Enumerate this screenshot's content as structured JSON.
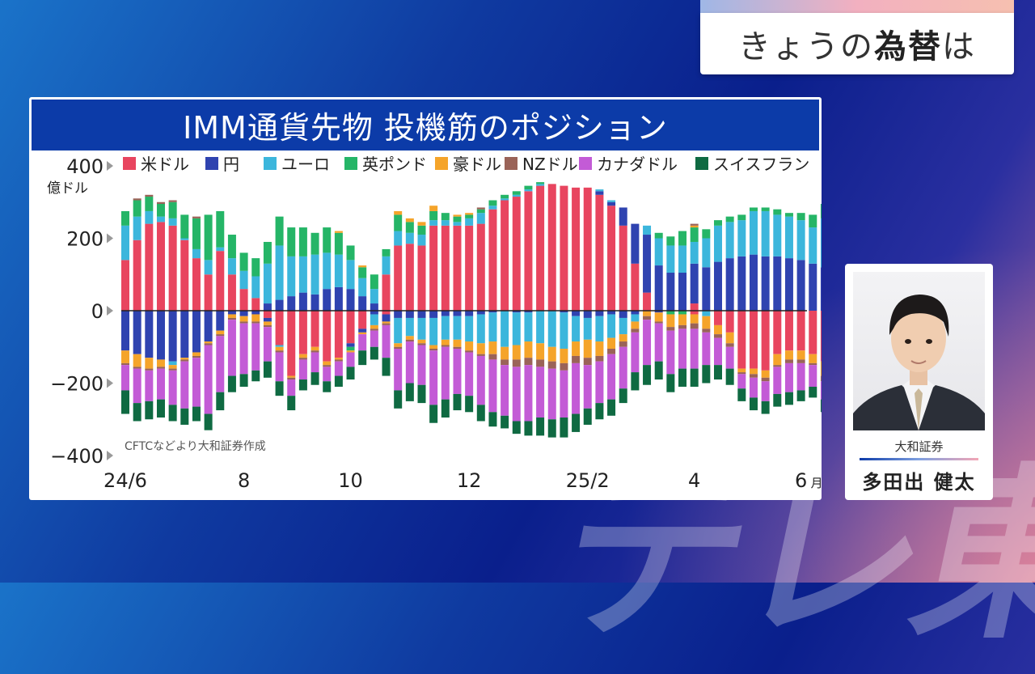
{
  "header": {
    "title_plain": "きょうの",
    "title_bold": "為替",
    "title_tail": "は"
  },
  "chart_data": {
    "type": "bar",
    "stacked": true,
    "title": "IMM通貨先物 投機筋のポジション",
    "ylabel": "億ドル",
    "source": "CFTCなどより大和証券作成",
    "ylim": [
      -400,
      400
    ],
    "yticks": [
      {
        "v": 400,
        "label": "400"
      },
      {
        "v": 200,
        "label": "200"
      },
      {
        "v": 0,
        "label": "0"
      },
      {
        "v": -200,
        "label": "−200"
      },
      {
        "v": -400,
        "label": "−400"
      }
    ],
    "xticks": [
      {
        "i": 0,
        "label": "24/6"
      },
      {
        "i": 10,
        "label": "8"
      },
      {
        "i": 19,
        "label": "10"
      },
      {
        "i": 29,
        "label": "12"
      },
      {
        "i": 39,
        "label": "25/2"
      },
      {
        "i": 48,
        "label": "4"
      },
      {
        "i": 57,
        "label": "6"
      }
    ],
    "x_unit": "月",
    "legend_position": "top",
    "series": [
      {
        "name": "米ドル",
        "color": "#e8455f"
      },
      {
        "name": "円",
        "color": "#2f43b0"
      },
      {
        "name": "ユーロ",
        "color": "#3cb6dc"
      },
      {
        "name": "英ポンド",
        "color": "#25b567"
      },
      {
        "name": "豪ドル",
        "color": "#f5a42a"
      },
      {
        "name": "NZドル",
        "color": "#9a6358"
      },
      {
        "name": "カナダドル",
        "color": "#c35bd6"
      },
      {
        "name": "スイスフラン",
        "color": "#0f6a42"
      }
    ],
    "weeks": [
      [
        [
          140,
          0,
          95,
          40,
          0,
          0,
          0,
          0
        ],
        [
          0,
          -110,
          0,
          0,
          -35,
          -5,
          -70,
          -65
        ]
      ],
      [
        [
          195,
          0,
          65,
          45,
          0,
          5,
          0,
          0
        ],
        [
          0,
          -120,
          0,
          0,
          -35,
          -5,
          -95,
          -50
        ]
      ],
      [
        [
          240,
          0,
          35,
          40,
          0,
          5,
          0,
          0
        ],
        [
          0,
          -130,
          0,
          0,
          -30,
          -5,
          -85,
          -50
        ]
      ],
      [
        [
          245,
          0,
          15,
          35,
          0,
          5,
          0,
          0
        ],
        [
          0,
          -135,
          0,
          0,
          -20,
          -5,
          -85,
          -50
        ]
      ],
      [
        [
          235,
          0,
          20,
          45,
          0,
          5,
          0,
          0
        ],
        [
          0,
          -140,
          -10,
          0,
          -10,
          -5,
          -95,
          -45
        ]
      ],
      [
        [
          195,
          0,
          5,
          65,
          0,
          0,
          0,
          0
        ],
        [
          0,
          -130,
          0,
          0,
          -5,
          -5,
          -130,
          -45
        ]
      ],
      [
        [
          145,
          0,
          25,
          85,
          0,
          5,
          0,
          0
        ],
        [
          0,
          -115,
          0,
          0,
          -10,
          -5,
          -135,
          -40
        ]
      ],
      [
        [
          100,
          0,
          40,
          125,
          0,
          0,
          0,
          0
        ],
        [
          0,
          -85,
          0,
          0,
          -5,
          -5,
          -190,
          -45
        ]
      ],
      [
        [
          165,
          0,
          10,
          100,
          0,
          0,
          0,
          0
        ],
        [
          0,
          -55,
          0,
          0,
          -10,
          -5,
          -155,
          -50
        ]
      ],
      [
        [
          100,
          0,
          45,
          65,
          0,
          0,
          0,
          0
        ],
        [
          0,
          -10,
          0,
          0,
          -10,
          -5,
          -155,
          -45
        ]
      ],
      [
        [
          60,
          0,
          50,
          50,
          0,
          0,
          0,
          0
        ],
        [
          0,
          -15,
          0,
          0,
          -15,
          -5,
          -140,
          -35
        ]
      ],
      [
        [
          35,
          0,
          60,
          50,
          0,
          0,
          0,
          0
        ],
        [
          0,
          -10,
          0,
          0,
          -20,
          -5,
          -130,
          -30
        ]
      ],
      [
        [
          0,
          20,
          110,
          60,
          0,
          0,
          0,
          0
        ],
        [
          -20,
          -10,
          0,
          0,
          -10,
          -5,
          -95,
          -45
        ]
      ],
      [
        [
          0,
          30,
          150,
          80,
          0,
          0,
          0,
          0
        ],
        [
          -95,
          0,
          -5,
          0,
          -10,
          -5,
          -80,
          -40
        ]
      ],
      [
        [
          0,
          40,
          110,
          80,
          0,
          0,
          0,
          0
        ],
        [
          -180,
          0,
          0,
          0,
          -5,
          -5,
          -45,
          -40
        ]
      ],
      [
        [
          0,
          50,
          100,
          80,
          0,
          0,
          0,
          0
        ],
        [
          -120,
          0,
          0,
          0,
          -10,
          -5,
          -55,
          -30
        ]
      ],
      [
        [
          0,
          45,
          110,
          60,
          0,
          0,
          0,
          0
        ],
        [
          -100,
          0,
          0,
          0,
          -10,
          -5,
          -55,
          -35
        ]
      ],
      [
        [
          0,
          60,
          100,
          70,
          0,
          0,
          0,
          0
        ],
        [
          -140,
          0,
          0,
          0,
          -10,
          -5,
          -40,
          -30
        ]
      ],
      [
        [
          0,
          65,
          90,
          60,
          5,
          0,
          0,
          0
        ],
        [
          -130,
          0,
          0,
          0,
          -5,
          -5,
          -40,
          -30
        ]
      ],
      [
        [
          0,
          60,
          80,
          40,
          0,
          0,
          0,
          0
        ],
        [
          -90,
          -10,
          0,
          -10,
          -5,
          0,
          -40,
          -35
        ]
      ],
      [
        [
          0,
          40,
          50,
          30,
          5,
          0,
          0,
          0
        ],
        [
          -50,
          -10,
          0,
          0,
          -5,
          0,
          -45,
          -40
        ]
      ],
      [
        [
          0,
          20,
          40,
          40,
          0,
          0,
          0,
          0
        ],
        [
          0,
          -10,
          -30,
          0,
          -10,
          -5,
          -45,
          -35
        ]
      ],
      [
        [
          100,
          0,
          50,
          20,
          0,
          0,
          0,
          0
        ],
        [
          -10,
          -20,
          0,
          0,
          -5,
          -5,
          -90,
          -50
        ]
      ],
      [
        [
          180,
          0,
          40,
          45,
          10,
          0,
          0,
          0
        ],
        [
          0,
          -20,
          -70,
          0,
          -10,
          -5,
          -115,
          -50
        ]
      ],
      [
        [
          185,
          0,
          30,
          30,
          10,
          0,
          0,
          0
        ],
        [
          0,
          -20,
          -50,
          0,
          -10,
          -5,
          -115,
          -50
        ]
      ],
      [
        [
          180,
          0,
          30,
          25,
          10,
          0,
          0,
          0
        ],
        [
          0,
          -20,
          -60,
          0,
          -10,
          -5,
          -110,
          -50
        ]
      ],
      [
        [
          235,
          0,
          15,
          25,
          15,
          0,
          0,
          0
        ],
        [
          0,
          -20,
          -75,
          0,
          -10,
          -5,
          -150,
          -50
        ]
      ],
      [
        [
          235,
          0,
          15,
          20,
          0,
          0,
          0,
          0
        ],
        [
          0,
          -15,
          -65,
          0,
          -15,
          -5,
          -145,
          -50
        ]
      ],
      [
        [
          235,
          0,
          10,
          15,
          5,
          0,
          0,
          0
        ],
        [
          0,
          -15,
          -65,
          0,
          -20,
          -5,
          -125,
          -45
        ]
      ],
      [
        [
          235,
          0,
          20,
          10,
          5,
          0,
          0,
          0
        ],
        [
          0,
          -15,
          -70,
          0,
          -25,
          -5,
          -120,
          -45
        ]
      ],
      [
        [
          240,
          0,
          30,
          10,
          0,
          5,
          0,
          0
        ],
        [
          0,
          -10,
          -80,
          0,
          -30,
          -5,
          -135,
          -45
        ]
      ],
      [
        [
          280,
          0,
          10,
          15,
          0,
          0,
          0,
          0
        ],
        [
          0,
          -5,
          -80,
          0,
          -35,
          -15,
          -145,
          -40
        ]
      ],
      [
        [
          305,
          0,
          5,
          10,
          0,
          0,
          0,
          0
        ],
        [
          0,
          0,
          -100,
          0,
          -35,
          -15,
          -140,
          -35
        ]
      ],
      [
        [
          315,
          0,
          5,
          10,
          0,
          0,
          0,
          0
        ],
        [
          0,
          -5,
          -90,
          0,
          -40,
          -20,
          -150,
          -35
        ]
      ],
      [
        [
          330,
          0,
          5,
          10,
          0,
          0,
          0,
          0
        ],
        [
          0,
          -5,
          -80,
          0,
          -45,
          -20,
          -155,
          -40
        ]
      ],
      [
        [
          345,
          0,
          5,
          5,
          0,
          0,
          0,
          0
        ],
        [
          0,
          0,
          -90,
          0,
          -45,
          -20,
          -140,
          -50
        ]
      ],
      [
        [
          350,
          0,
          0,
          0,
          0,
          0,
          0,
          0
        ],
        [
          0,
          0,
          -100,
          0,
          -40,
          -20,
          -140,
          -50
        ]
      ],
      [
        [
          345,
          0,
          0,
          0,
          0,
          0,
          0,
          0
        ],
        [
          0,
          -5,
          -100,
          0,
          -40,
          -20,
          -130,
          -55
        ]
      ],
      [
        [
          340,
          0,
          0,
          0,
          0,
          0,
          0,
          0
        ],
        [
          0,
          -15,
          -70,
          0,
          -40,
          -20,
          -140,
          -50
        ]
      ],
      [
        [
          340,
          0,
          0,
          0,
          0,
          0,
          0,
          0
        ],
        [
          0,
          -20,
          -60,
          0,
          -50,
          -20,
          -120,
          -45
        ]
      ],
      [
        [
          320,
          10,
          5,
          0,
          0,
          0,
          0,
          0
        ],
        [
          0,
          -15,
          -70,
          0,
          -40,
          -15,
          -115,
          -45
        ]
      ],
      [
        [
          290,
          10,
          5,
          0,
          0,
          0,
          0,
          0
        ],
        [
          0,
          -10,
          -65,
          0,
          -30,
          -15,
          -125,
          -45
        ]
      ],
      [
        [
          235,
          50,
          0,
          0,
          0,
          0,
          0,
          0
        ],
        [
          0,
          -20,
          -45,
          0,
          -20,
          -15,
          -115,
          -40
        ]
      ],
      [
        [
          130,
          110,
          0,
          0,
          0,
          0,
          0,
          0
        ],
        [
          0,
          -10,
          -20,
          0,
          -20,
          -10,
          -110,
          -50
        ]
      ],
      [
        [
          50,
          160,
          25,
          0,
          0,
          0,
          0,
          0
        ],
        [
          0,
          0,
          0,
          0,
          -15,
          -10,
          -125,
          -55
        ]
      ],
      [
        [
          0,
          125,
          75,
          15,
          0,
          0,
          0,
          0
        ],
        [
          0,
          -5,
          0,
          0,
          -25,
          -5,
          -105,
          -50
        ]
      ],
      [
        [
          0,
          105,
          75,
          25,
          0,
          0,
          0,
          0
        ],
        [
          0,
          0,
          0,
          -10,
          -35,
          -10,
          -120,
          -50
        ]
      ],
      [
        [
          0,
          105,
          75,
          40,
          0,
          0,
          0,
          0
        ],
        [
          0,
          0,
          0,
          -10,
          -30,
          -10,
          -110,
          -50
        ]
      ],
      [
        [
          20,
          110,
          60,
          40,
          5,
          5,
          0,
          0
        ],
        [
          -10,
          0,
          0,
          0,
          -25,
          -15,
          -110,
          -50
        ]
      ],
      [
        [
          0,
          120,
          80,
          25,
          0,
          0,
          0,
          0
        ],
        [
          0,
          0,
          -15,
          0,
          -35,
          -10,
          -90,
          -50
        ]
      ],
      [
        [
          0,
          135,
          100,
          15,
          0,
          0,
          0,
          0
        ],
        [
          -40,
          0,
          0,
          0,
          -25,
          -10,
          -75,
          -40
        ]
      ],
      [
        [
          0,
          145,
          100,
          15,
          0,
          0,
          0,
          0
        ],
        [
          -60,
          0,
          0,
          0,
          -30,
          -10,
          -60,
          -45
        ]
      ],
      [
        [
          0,
          150,
          100,
          15,
          0,
          0,
          0,
          0
        ],
        [
          -160,
          0,
          0,
          0,
          -10,
          -5,
          -40,
          -35
        ]
      ],
      [
        [
          0,
          155,
          120,
          10,
          0,
          0,
          0,
          0
        ],
        [
          -160,
          0,
          0,
          0,
          -15,
          -10,
          -55,
          -35
        ]
      ],
      [
        [
          0,
          150,
          125,
          10,
          0,
          0,
          0,
          0
        ],
        [
          -165,
          0,
          0,
          0,
          -20,
          -10,
          -55,
          -35
        ]
      ],
      [
        [
          0,
          150,
          115,
          15,
          0,
          0,
          0,
          0
        ],
        [
          -120,
          0,
          0,
          0,
          -30,
          -5,
          -75,
          -35
        ]
      ],
      [
        [
          0,
          145,
          115,
          10,
          0,
          0,
          0,
          0
        ],
        [
          -110,
          0,
          0,
          0,
          -25,
          -10,
          -80,
          -35
        ]
      ],
      [
        [
          0,
          140,
          110,
          20,
          0,
          0,
          0,
          0
        ],
        [
          -110,
          0,
          0,
          0,
          -25,
          -10,
          -75,
          -30
        ]
      ],
      [
        [
          0,
          130,
          100,
          35,
          0,
          0,
          0,
          0
        ],
        [
          -120,
          0,
          0,
          0,
          -25,
          -5,
          -60,
          -30
        ]
      ],
      [
        [
          0,
          120,
          135,
          40,
          0,
          0,
          0,
          0
        ],
        [
          -140,
          0,
          0,
          0,
          -40,
          -15,
          -50,
          -35
        ]
      ]
    ]
  },
  "person": {
    "company": "大和証券",
    "name": "多田出 健太"
  },
  "watermark": "テレ東"
}
